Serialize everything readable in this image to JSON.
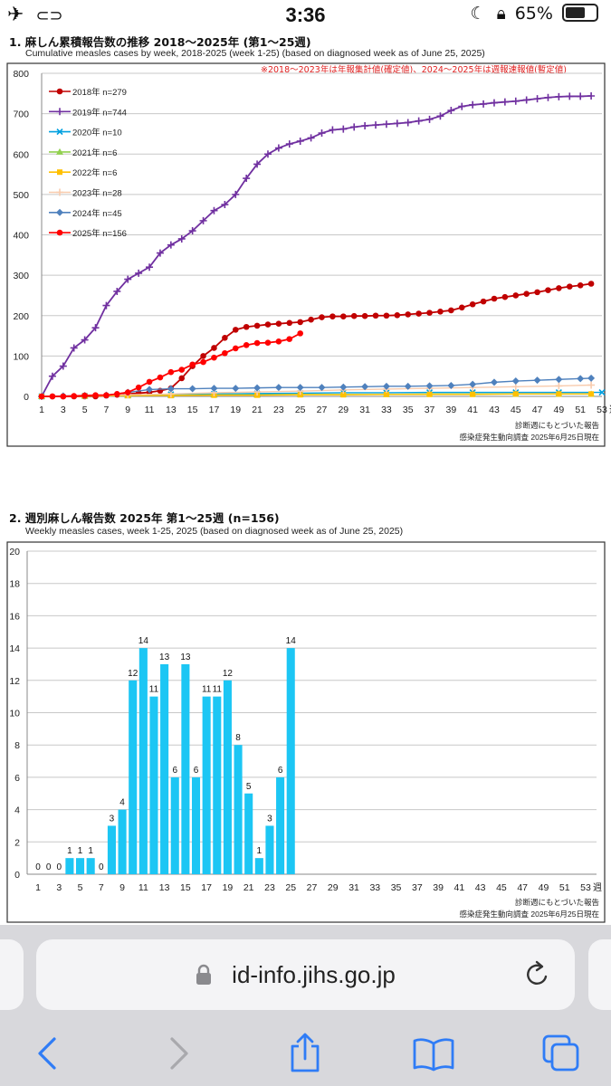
{
  "status_bar": {
    "time": "3:36",
    "battery": "65%",
    "battery_level": 0.65
  },
  "section1": {
    "title": "1. 麻しん累積報告数の推移  2018〜2025年 (第1〜25週)",
    "subtitle": "Cumulative measles cases by week, 2018-2025 (week 1-25)  (based on diagnosed week as of June 25, 2025)",
    "note": "※2018〜2023年は年報集計値(確定値)、2024〜2025年は週報速報値(暫定値)",
    "footer_line1": "診断週にもとづいた報告",
    "footer_line2": "感染症発生動向調査 2025年6月25日現在",
    "x_unit": "週"
  },
  "section2": {
    "title": "2. 週別麻しん報告数  2025年 第1〜25週 (n=156)",
    "subtitle": "Weekly measles cases, week 1-25, 2025 (based on diagnosed week as of June 25, 2025)",
    "footer_line1": "診断週にもとづいた報告",
    "footer_line2": "感染症発生動向調査 2025年6月25日現在",
    "x_unit": "週"
  },
  "browser": {
    "url": "id-info.jihs.go.jp"
  },
  "chart_data": [
    {
      "type": "line",
      "title": "1. 麻しん累積報告数の推移  2018〜2025年 (第1〜25週)",
      "subtitle": "Cumulative measles cases by week, 2018-2025 (week 1-25)  (based on diagnosed week as of June 25, 2025)",
      "xlabel": "週",
      "ylabel": "",
      "xlim": [
        1,
        53
      ],
      "ylim": [
        0,
        800
      ],
      "y_ticks": [
        0,
        100,
        200,
        300,
        400,
        500,
        600,
        700,
        800
      ],
      "x_ticks": [
        1,
        3,
        5,
        7,
        9,
        11,
        13,
        15,
        17,
        19,
        21,
        23,
        25,
        27,
        29,
        31,
        33,
        35,
        37,
        39,
        41,
        43,
        45,
        47,
        49,
        51,
        53
      ],
      "grid": "horizontal",
      "legend_position": "top-left",
      "series": [
        {
          "name": "2018年 n=279",
          "color": "#c00000",
          "marker": "circle",
          "x": [
            1,
            2,
            3,
            4,
            5,
            6,
            7,
            8,
            9,
            10,
            11,
            12,
            13,
            14,
            15,
            16,
            17,
            18,
            19,
            20,
            21,
            22,
            23,
            24,
            25,
            26,
            27,
            28,
            29,
            30,
            31,
            32,
            33,
            34,
            35,
            36,
            37,
            38,
            39,
            40,
            41,
            42,
            43,
            44,
            45,
            46,
            47,
            48,
            49,
            50,
            51,
            52
          ],
          "values": [
            0,
            0,
            0,
            0,
            0,
            0,
            2,
            4,
            6,
            8,
            10,
            14,
            20,
            45,
            75,
            100,
            120,
            145,
            165,
            172,
            175,
            178,
            180,
            182,
            184,
            190,
            196,
            198,
            198,
            199,
            199,
            200,
            200,
            201,
            203,
            205,
            207,
            210,
            213,
            220,
            228,
            235,
            242,
            246,
            250,
            254,
            258,
            263,
            268,
            272,
            275,
            279
          ]
        },
        {
          "name": "2019年 n=744",
          "color": "#7030a0",
          "marker": "plus",
          "x": [
            1,
            2,
            3,
            4,
            5,
            6,
            7,
            8,
            9,
            10,
            11,
            12,
            13,
            14,
            15,
            16,
            17,
            18,
            19,
            20,
            21,
            22,
            23,
            24,
            25,
            26,
            27,
            28,
            29,
            30,
            31,
            32,
            33,
            34,
            35,
            36,
            37,
            38,
            39,
            40,
            41,
            42,
            43,
            44,
            45,
            46,
            47,
            48,
            49,
            50,
            51,
            52
          ],
          "values": [
            0,
            50,
            75,
            120,
            140,
            170,
            225,
            260,
            290,
            305,
            320,
            355,
            375,
            390,
            410,
            435,
            460,
            475,
            500,
            540,
            575,
            600,
            615,
            625,
            632,
            640,
            652,
            660,
            662,
            667,
            670,
            672,
            674,
            676,
            678,
            682,
            686,
            694,
            708,
            718,
            722,
            724,
            727,
            729,
            731,
            734,
            737,
            740,
            742,
            743,
            743,
            744
          ]
        },
        {
          "name": "2020年 n=10",
          "color": "#00a0e0",
          "marker": "x",
          "x": [
            1,
            5,
            9,
            13,
            17,
            21,
            25,
            29,
            33,
            37,
            41,
            45,
            49,
            53
          ],
          "values": [
            0,
            1,
            3,
            5,
            6,
            7,
            8,
            9,
            9,
            10,
            10,
            10,
            10,
            10
          ]
        },
        {
          "name": "2021年 n=6",
          "color": "#92d050",
          "marker": "triangle",
          "x": [
            1,
            5,
            9,
            13,
            17,
            21,
            25,
            29,
            33,
            37,
            41,
            45,
            49,
            52
          ],
          "values": [
            0,
            1,
            2,
            3,
            4,
            4,
            5,
            5,
            5,
            6,
            6,
            6,
            6,
            6
          ]
        },
        {
          "name": "2022年 n=6",
          "color": "#ffc000",
          "marker": "square",
          "x": [
            1,
            5,
            9,
            13,
            17,
            21,
            25,
            29,
            33,
            37,
            41,
            45,
            49,
            52
          ],
          "values": [
            0,
            1,
            2,
            2,
            3,
            3,
            4,
            4,
            5,
            5,
            5,
            6,
            6,
            6
          ]
        },
        {
          "name": "2023年 n=28",
          "color": "#f8cbad",
          "marker": "plus",
          "x": [
            1,
            5,
            9,
            13,
            17,
            21,
            25,
            29,
            33,
            37,
            41,
            45,
            49,
            52
          ],
          "values": [
            0,
            2,
            4,
            6,
            9,
            11,
            13,
            16,
            18,
            20,
            22,
            24,
            26,
            28
          ]
        },
        {
          "name": "2024年 n=45",
          "color": "#4f81bd",
          "marker": "diamond",
          "x": [
            1,
            3,
            5,
            7,
            9,
            11,
            13,
            15,
            17,
            19,
            21,
            23,
            25,
            27,
            29,
            31,
            33,
            35,
            37,
            39,
            41,
            43,
            45,
            47,
            49,
            51,
            52
          ],
          "values": [
            0,
            1,
            2,
            3,
            10,
            17,
            19,
            19,
            20,
            20,
            21,
            22,
            22,
            22,
            23,
            24,
            25,
            25,
            26,
            27,
            30,
            35,
            38,
            40,
            42,
            44,
            45
          ]
        },
        {
          "name": "2025年 n=156",
          "color": "#ff0000",
          "marker": "circle",
          "x": [
            1,
            2,
            3,
            4,
            5,
            6,
            7,
            8,
            9,
            10,
            11,
            12,
            13,
            14,
            15,
            16,
            17,
            18,
            19,
            20,
            21,
            22,
            23,
            24,
            25
          ],
          "values": [
            0,
            0,
            0,
            1,
            2,
            3,
            3,
            6,
            10,
            22,
            36,
            47,
            60,
            66,
            79,
            85,
            96,
            107,
            119,
            127,
            132,
            133,
            136,
            142,
            156
          ]
        }
      ]
    },
    {
      "type": "bar",
      "title": "2. 週別麻しん報告数  2025年 第1〜25週 (n=156)",
      "subtitle": "Weekly measles cases, week 1-25, 2025 (based on diagnosed week as of June 25, 2025)",
      "xlabel": "週",
      "ylabel": "",
      "xlim": [
        1,
        53
      ],
      "ylim": [
        0,
        20
      ],
      "y_ticks": [
        0,
        2,
        4,
        6,
        8,
        10,
        12,
        14,
        16,
        18,
        20
      ],
      "x_ticks": [
        1,
        3,
        5,
        7,
        9,
        11,
        13,
        15,
        17,
        19,
        21,
        23,
        25,
        27,
        29,
        31,
        33,
        35,
        37,
        39,
        41,
        43,
        45,
        47,
        49,
        51,
        53
      ],
      "grid": "horizontal",
      "color": "#1cc6f4",
      "categories": [
        1,
        2,
        3,
        4,
        5,
        6,
        7,
        8,
        9,
        10,
        11,
        12,
        13,
        14,
        15,
        16,
        17,
        18,
        19,
        20,
        21,
        22,
        23,
        24,
        25
      ],
      "values": [
        0,
        0,
        0,
        1,
        1,
        1,
        0,
        3,
        4,
        12,
        14,
        11,
        13,
        6,
        13,
        6,
        11,
        11,
        12,
        8,
        5,
        1,
        3,
        6,
        14
      ],
      "data_labels": [
        "0",
        "0",
        "0",
        "1",
        "1",
        "1",
        "0",
        "3",
        "4",
        "12",
        "14",
        "11",
        "13",
        "6",
        "13",
        "6",
        "11",
        "11",
        "12",
        "8",
        "5",
        "1",
        "3",
        "6",
        "14"
      ]
    }
  ]
}
